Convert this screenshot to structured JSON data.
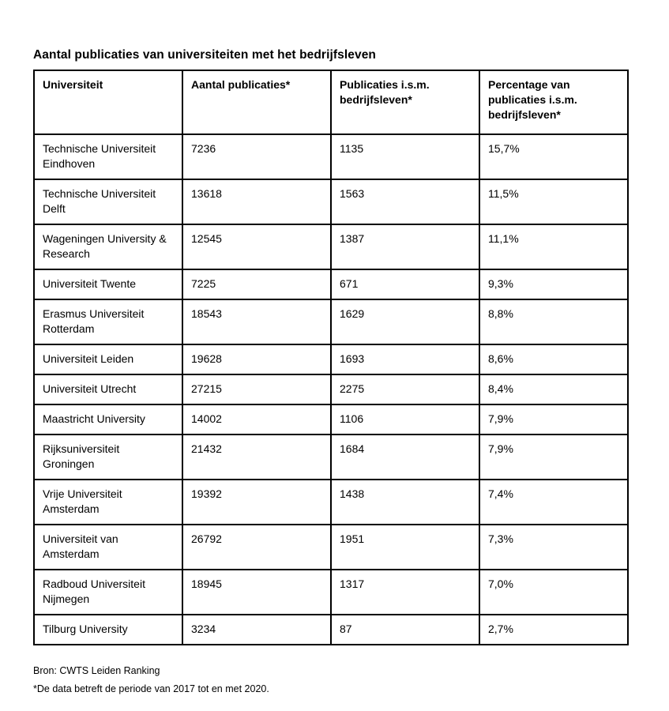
{
  "page": {
    "title": "Aantal publicaties van universiteiten met het bedrijfsleven"
  },
  "table": {
    "columns": [
      "Universiteit",
      "Aantal publicaties*",
      "Publicaties i.s.m. bedrijfsleven*",
      "Percentage van publicaties i.s.m. bedrijfsleven*"
    ],
    "column_keys": [
      "university",
      "publications-total",
      "publications-collab",
      "percentage"
    ],
    "rows": [
      {
        "university": "Technische Universiteit Eindhoven",
        "publications": "7236",
        "collab": "1135",
        "percentage": "15,7%",
        "lines": 2
      },
      {
        "university": "Technische Universiteit Delft",
        "publications": "13618",
        "collab": "1563",
        "percentage": "11,5%",
        "lines": 2
      },
      {
        "university": "Wageningen University & Research",
        "publications": "12545",
        "collab": "1387",
        "percentage": "11,1%",
        "lines": 2
      },
      {
        "university": "Universiteit Twente",
        "publications": "7225",
        "collab": "671",
        "percentage": "9,3%",
        "lines": 1
      },
      {
        "university": "Erasmus Universiteit Rotterdam",
        "publications": "18543",
        "collab": "1629",
        "percentage": "8,8%",
        "lines": 2
      },
      {
        "university": "Universiteit Leiden",
        "publications": "19628",
        "collab": "1693",
        "percentage": "8,6%",
        "lines": 1
      },
      {
        "university": "Universiteit Utrecht",
        "publications": "27215",
        "collab": "2275",
        "percentage": "8,4%",
        "lines": 1
      },
      {
        "university": "Maastricht University",
        "publications": "14002",
        "collab": "1106",
        "percentage": "7,9%",
        "lines": 1
      },
      {
        "university": "Rijksuniversiteit Groningen",
        "publications": "21432",
        "collab": "1684",
        "percentage": "7,9%",
        "lines": 2
      },
      {
        "university": "Vrije Universiteit Amsterdam",
        "publications": "19392",
        "collab": "1438",
        "percentage": "7,4%",
        "lines": 2
      },
      {
        "university": "Universiteit van Amsterdam",
        "publications": "26792",
        "collab": "1951",
        "percentage": "7,3%",
        "lines": 2
      },
      {
        "university": "Radboud Universiteit Nijmegen",
        "publications": "18945",
        "collab": "1317",
        "percentage": "7,0%",
        "lines": 2
      },
      {
        "university": "Tilburg University",
        "publications": "3234",
        "collab": "87",
        "percentage": "2,7%",
        "lines": 1
      }
    ]
  },
  "footer": {
    "source": "Bron: CWTS Leiden Ranking",
    "note": "*De data betreft de periode van 2017 tot en met 2020."
  },
  "colors": {
    "border": "#000000",
    "text": "#000000",
    "background": "#ffffff"
  }
}
